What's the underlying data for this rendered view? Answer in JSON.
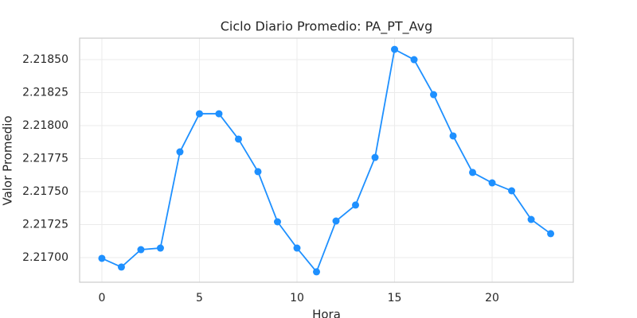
{
  "chart_data": {
    "type": "line",
    "title": "Ciclo Diario Promedio: PA_PT_Avg",
    "x_label": "Hora",
    "y_label": "Valor Promedio",
    "x": [
      0,
      1,
      2,
      3,
      4,
      5,
      6,
      7,
      8,
      9,
      10,
      11,
      12,
      13,
      14,
      15,
      16,
      17,
      18,
      19,
      20,
      21,
      22,
      23
    ],
    "series": [
      {
        "name": "PA_PT_Avg",
        "color": "#1e90ff",
        "values": [
          2.216994,
          2.216928,
          2.21706,
          2.217072,
          2.217801,
          2.21809,
          2.21809,
          2.217898,
          2.217651,
          2.217271,
          2.217072,
          2.216892,
          2.217277,
          2.217398,
          2.217759,
          2.218578,
          2.2185,
          2.218235,
          2.217922,
          2.217645,
          2.217566,
          2.217506,
          2.217289,
          2.217181
        ]
      }
    ],
    "xlim": [
      -1.14,
      24.16
    ],
    "ylim": [
      2.216813,
      2.218663
    ],
    "xticks": [
      0,
      5,
      10,
      15,
      20
    ],
    "yticks": [
      {
        "value": 2.217,
        "label": "2.21700"
      },
      {
        "value": 2.21725,
        "label": "2.21725"
      },
      {
        "value": 2.2175,
        "label": "2.21750"
      },
      {
        "value": 2.21775,
        "label": "2.21775"
      },
      {
        "value": 2.218,
        "label": "2.21800"
      },
      {
        "value": 2.21825,
        "label": "2.21825"
      },
      {
        "value": 2.2185,
        "label": "2.21850"
      }
    ],
    "grid": true
  }
}
